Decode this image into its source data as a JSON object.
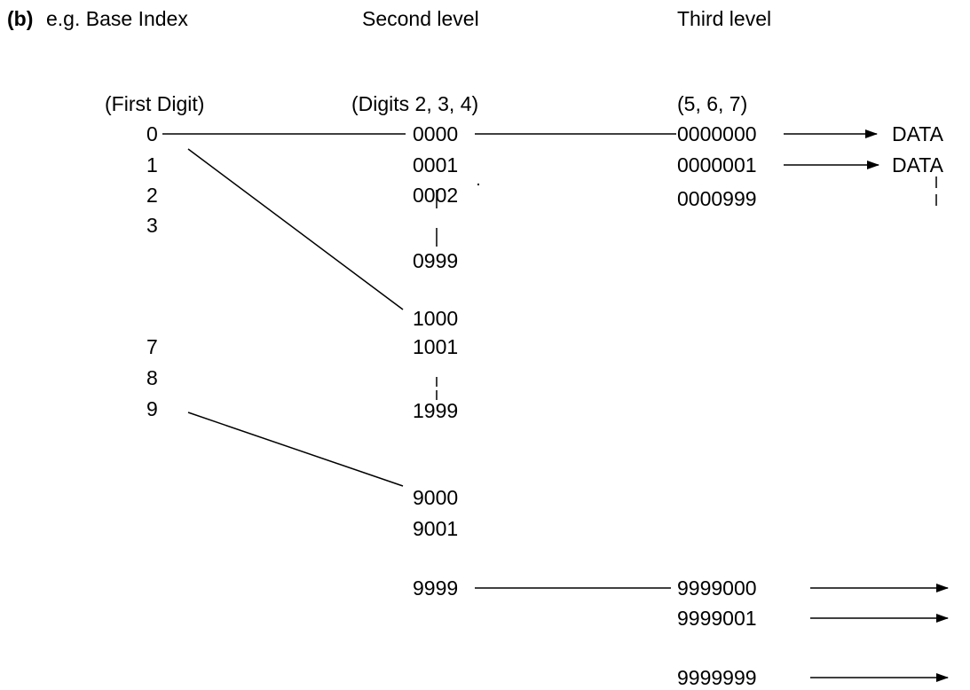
{
  "header": {
    "part_label": "(b)",
    "example_label": "e.g. Base Index",
    "second_level": "Second level",
    "third_level": "Third level"
  },
  "subheaders": {
    "first": "(First Digit)",
    "second": "(Digits 2, 3, 4)",
    "third": "(5, 6, 7)"
  },
  "first_level": {
    "d0": "0",
    "d1": "1",
    "d2": "2",
    "d3": "3",
    "d7": "7",
    "d8": "8",
    "d9": "9"
  },
  "second_level": {
    "s0000": "0000",
    "s0001": "0001",
    "s0002": "0002",
    "s0999": "0999",
    "s1000": "1000",
    "s1001": "1001",
    "s1999": "1999",
    "s9000": "9000",
    "s9001": "9001",
    "s9999": "9999"
  },
  "third_level": {
    "t0000000": "0000000",
    "t0000001": "0000001",
    "t0000999": "0000999",
    "t9999000": "9999000",
    "t9999001": "9999001",
    "t9999999": "9999999"
  },
  "data": {
    "label_1": "DATA",
    "label_2": "DATA"
  }
}
